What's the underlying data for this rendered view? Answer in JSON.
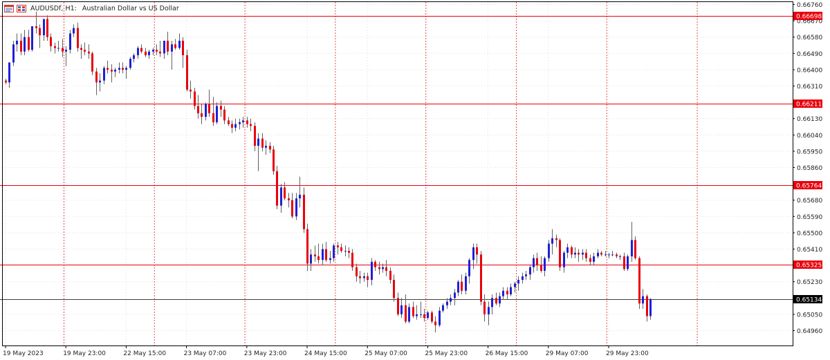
{
  "header": {
    "symbol_label": "AUDUSDf, H1:",
    "description": "Australian Dollar vs US Dollar",
    "icons": [
      "chart-window-icon",
      "symbol-list-icon"
    ]
  },
  "colors": {
    "bull": "#1f1fd8",
    "bear": "#e8000b",
    "wick": "#606060",
    "grid": "#dddddd",
    "vgrid": "#e05050",
    "hline": "#e8000b",
    "current": "#000000"
  },
  "chart_data": {
    "type": "candlestick",
    "timeframe": "H1",
    "ylim": [
      0.64945,
      0.66775
    ],
    "y_ticks": [
      "0.66760",
      "0.66670",
      "0.66580",
      "0.66490",
      "0.66400",
      "0.66310",
      "0.66130",
      "0.66040",
      "0.65950",
      "0.65860",
      "0.65680",
      "0.65590",
      "0.65500",
      "0.65410",
      "0.65230",
      "0.65050",
      "0.64960"
    ],
    "x_ticks": [
      "19 May 2023",
      "19 May 23:00",
      "22 May 15:00",
      "23 May 07:00",
      "23 May 23:00",
      "24 May 15:00",
      "25 May 07:00",
      "25 May 23:00",
      "26 May 15:00",
      "29 May 07:00",
      "29 May 23:00"
    ],
    "x_tick_index": [
      0,
      16,
      32,
      48,
      64,
      80,
      96,
      112,
      128,
      144,
      160
    ],
    "separator_index": [
      16,
      40,
      64,
      88,
      112,
      136,
      160,
      184
    ],
    "horizontal_levels": [
      {
        "value": 0.66698,
        "label": "0.66698"
      },
      {
        "value": 0.66211,
        "label": "0.66211"
      },
      {
        "value": 0.65764,
        "label": "0.65764"
      },
      {
        "value": 0.65325,
        "label": "0.65325"
      }
    ],
    "current_price": {
      "value": 0.65134,
      "label": "0.65134"
    },
    "candles": [
      [
        0.6634,
        0.6635,
        0.6632,
        0.6633
      ],
      [
        0.6633,
        0.6644,
        0.663,
        0.6644
      ],
      [
        0.6644,
        0.6656,
        0.6642,
        0.6654
      ],
      [
        0.6654,
        0.666,
        0.665,
        0.6656
      ],
      [
        0.6656,
        0.666,
        0.6648,
        0.665
      ],
      [
        0.665,
        0.6662,
        0.6648,
        0.6658
      ],
      [
        0.6658,
        0.6662,
        0.665,
        0.6651
      ],
      [
        0.6651,
        0.6664,
        0.665,
        0.6664
      ],
      [
        0.6664,
        0.6672,
        0.666,
        0.6663
      ],
      [
        0.6663,
        0.6665,
        0.6652,
        0.6659
      ],
      [
        0.6659,
        0.6668,
        0.6656,
        0.6668
      ],
      [
        0.6668,
        0.667,
        0.6656,
        0.6658
      ],
      [
        0.6658,
        0.666,
        0.665,
        0.6653
      ],
      [
        0.6653,
        0.6655,
        0.6649,
        0.6652
      ],
      [
        0.6652,
        0.6656,
        0.665,
        0.6652
      ],
      [
        0.6652,
        0.6657,
        0.6647,
        0.665
      ],
      [
        0.665,
        0.6653,
        0.6642,
        0.6651
      ],
      [
        0.6651,
        0.6662,
        0.6649,
        0.666
      ],
      [
        0.666,
        0.6665,
        0.6658,
        0.6663
      ],
      [
        0.6663,
        0.6666,
        0.665,
        0.6652
      ],
      [
        0.6652,
        0.6654,
        0.6646,
        0.6651
      ],
      [
        0.6651,
        0.6655,
        0.6648,
        0.665
      ],
      [
        0.665,
        0.6654,
        0.6646,
        0.6649
      ],
      [
        0.6649,
        0.665,
        0.6637,
        0.6639
      ],
      [
        0.6639,
        0.6641,
        0.6626,
        0.6633
      ],
      [
        0.6633,
        0.6638,
        0.6628,
        0.6634
      ],
      [
        0.6634,
        0.6642,
        0.6632,
        0.6641
      ],
      [
        0.6641,
        0.6645,
        0.6638,
        0.664
      ],
      [
        0.664,
        0.6643,
        0.6633,
        0.6639
      ],
      [
        0.6639,
        0.6641,
        0.6636,
        0.664
      ],
      [
        0.664,
        0.6644,
        0.6638,
        0.6641
      ],
      [
        0.6641,
        0.6644,
        0.6638,
        0.664
      ],
      [
        0.664,
        0.6642,
        0.6635,
        0.6641
      ],
      [
        0.6641,
        0.6647,
        0.664,
        0.6646
      ],
      [
        0.6646,
        0.6649,
        0.6644,
        0.6648
      ],
      [
        0.6648,
        0.6653,
        0.6646,
        0.6652
      ],
      [
        0.6652,
        0.6654,
        0.6649,
        0.665
      ],
      [
        0.665,
        0.6652,
        0.6647,
        0.6648
      ],
      [
        0.6648,
        0.6651,
        0.6646,
        0.665
      ],
      [
        0.665,
        0.6652,
        0.6648,
        0.6651
      ],
      [
        0.6651,
        0.6654,
        0.6648,
        0.665
      ],
      [
        0.665,
        0.6656,
        0.6647,
        0.6649
      ],
      [
        0.6649,
        0.6656,
        0.6646,
        0.6656
      ],
      [
        0.6656,
        0.6661,
        0.6648,
        0.665
      ],
      [
        0.665,
        0.6656,
        0.664,
        0.6654
      ],
      [
        0.6654,
        0.6657,
        0.6651,
        0.6652
      ],
      [
        0.6652,
        0.666,
        0.6651,
        0.6656
      ],
      [
        0.6656,
        0.6658,
        0.6641,
        0.6648
      ],
      [
        0.6648,
        0.6651,
        0.6628,
        0.6629
      ],
      [
        0.6629,
        0.6634,
        0.6624,
        0.6628
      ],
      [
        0.6628,
        0.663,
        0.6618,
        0.662
      ],
      [
        0.662,
        0.6626,
        0.6613,
        0.6616
      ],
      [
        0.6616,
        0.6621,
        0.661,
        0.6614
      ],
      [
        0.6614,
        0.6622,
        0.6612,
        0.6621
      ],
      [
        0.6621,
        0.6629,
        0.6614,
        0.6616
      ],
      [
        0.6616,
        0.6625,
        0.6609,
        0.6611
      ],
      [
        0.6611,
        0.6622,
        0.661,
        0.662
      ],
      [
        0.662,
        0.6623,
        0.6614,
        0.6618
      ],
      [
        0.6618,
        0.662,
        0.661,
        0.6612
      ],
      [
        0.6612,
        0.6614,
        0.6609,
        0.661
      ],
      [
        0.661,
        0.6612,
        0.6605,
        0.6608
      ],
      [
        0.6608,
        0.6613,
        0.6606,
        0.661
      ],
      [
        0.661,
        0.6613,
        0.6607,
        0.6611
      ],
      [
        0.6611,
        0.6614,
        0.6608,
        0.6612
      ],
      [
        0.6612,
        0.6614,
        0.6608,
        0.661
      ],
      [
        0.661,
        0.6613,
        0.6606,
        0.6609
      ],
      [
        0.6609,
        0.6611,
        0.6595,
        0.6598
      ],
      [
        0.6598,
        0.6605,
        0.6584,
        0.6602
      ],
      [
        0.6602,
        0.6605,
        0.6595,
        0.6597
      ],
      [
        0.6597,
        0.6601,
        0.6593,
        0.6598
      ],
      [
        0.6598,
        0.66,
        0.6594,
        0.6596
      ],
      [
        0.6596,
        0.6598,
        0.6582,
        0.6584
      ],
      [
        0.6584,
        0.6587,
        0.6563,
        0.6565
      ],
      [
        0.6565,
        0.6577,
        0.6561,
        0.6575
      ],
      [
        0.6575,
        0.6578,
        0.6568,
        0.6569
      ],
      [
        0.6569,
        0.6572,
        0.6564,
        0.6568
      ],
      [
        0.6568,
        0.6572,
        0.6558,
        0.6559
      ],
      [
        0.6559,
        0.6572,
        0.6557,
        0.6569
      ],
      [
        0.6569,
        0.6581,
        0.6564,
        0.6571
      ],
      [
        0.6571,
        0.6575,
        0.655,
        0.6552
      ],
      [
        0.6552,
        0.6555,
        0.6529,
        0.6533
      ],
      [
        0.6533,
        0.6541,
        0.6529,
        0.6538
      ],
      [
        0.6538,
        0.6543,
        0.6534,
        0.6537
      ],
      [
        0.6537,
        0.6544,
        0.6533,
        0.6535
      ],
      [
        0.6535,
        0.6544,
        0.6532,
        0.6541
      ],
      [
        0.6541,
        0.6545,
        0.6534,
        0.6535
      ],
      [
        0.6535,
        0.654,
        0.6533,
        0.6536
      ],
      [
        0.6536,
        0.6544,
        0.6534,
        0.6543
      ],
      [
        0.6543,
        0.6545,
        0.6538,
        0.6542
      ],
      [
        0.6542,
        0.6544,
        0.6539,
        0.654
      ],
      [
        0.654,
        0.6543,
        0.6537,
        0.654
      ],
      [
        0.654,
        0.6542,
        0.6536,
        0.6539
      ],
      [
        0.6539,
        0.6541,
        0.6529,
        0.6531
      ],
      [
        0.6531,
        0.6533,
        0.6523,
        0.6526
      ],
      [
        0.6526,
        0.6529,
        0.6522,
        0.6525
      ],
      [
        0.6525,
        0.6528,
        0.6523,
        0.6526
      ],
      [
        0.6526,
        0.6528,
        0.652,
        0.6524
      ],
      [
        0.6524,
        0.6536,
        0.6521,
        0.6534
      ],
      [
        0.6534,
        0.6535,
        0.6529,
        0.6531
      ],
      [
        0.6531,
        0.6534,
        0.6527,
        0.653
      ],
      [
        0.653,
        0.6533,
        0.6528,
        0.6531
      ],
      [
        0.6531,
        0.6535,
        0.6526,
        0.6529
      ],
      [
        0.6529,
        0.6531,
        0.6522,
        0.6524
      ],
      [
        0.6524,
        0.6527,
        0.6512,
        0.6514
      ],
      [
        0.6514,
        0.6517,
        0.6504,
        0.6505
      ],
      [
        0.6505,
        0.6514,
        0.6503,
        0.651
      ],
      [
        0.651,
        0.6516,
        0.65,
        0.6501
      ],
      [
        0.6501,
        0.6511,
        0.65,
        0.6509
      ],
      [
        0.6509,
        0.6512,
        0.6503,
        0.6504
      ],
      [
        0.6504,
        0.651,
        0.6502,
        0.6505
      ],
      [
        0.6505,
        0.6512,
        0.6503,
        0.6505
      ],
      [
        0.6505,
        0.6508,
        0.6501,
        0.6503
      ],
      [
        0.6503,
        0.6507,
        0.6502,
        0.6506
      ],
      [
        0.6506,
        0.6507,
        0.65,
        0.6501
      ],
      [
        0.6501,
        0.6504,
        0.6495,
        0.6499
      ],
      [
        0.6499,
        0.6509,
        0.6498,
        0.6507
      ],
      [
        0.6507,
        0.6511,
        0.6506,
        0.651
      ],
      [
        0.651,
        0.6514,
        0.6508,
        0.6512
      ],
      [
        0.6512,
        0.6516,
        0.651,
        0.6514
      ],
      [
        0.6514,
        0.6519,
        0.651,
        0.6517
      ],
      [
        0.6517,
        0.6524,
        0.6515,
        0.6523
      ],
      [
        0.6523,
        0.6527,
        0.6516,
        0.6518
      ],
      [
        0.6518,
        0.6528,
        0.6516,
        0.6526
      ],
      [
        0.6526,
        0.6536,
        0.6522,
        0.6535
      ],
      [
        0.6535,
        0.6544,
        0.653,
        0.6542
      ],
      [
        0.6542,
        0.6544,
        0.6533,
        0.6538
      ],
      [
        0.6538,
        0.654,
        0.651,
        0.6512
      ],
      [
        0.6512,
        0.6516,
        0.6501,
        0.6505
      ],
      [
        0.6505,
        0.6512,
        0.6499,
        0.6509
      ],
      [
        0.6509,
        0.6516,
        0.6505,
        0.6514
      ],
      [
        0.6514,
        0.6517,
        0.651,
        0.6511
      ],
      [
        0.6511,
        0.6517,
        0.6509,
        0.6515
      ],
      [
        0.6515,
        0.652,
        0.6513,
        0.6518
      ],
      [
        0.6518,
        0.652,
        0.6513,
        0.6516
      ],
      [
        0.6516,
        0.6522,
        0.6515,
        0.652
      ],
      [
        0.652,
        0.6523,
        0.6517,
        0.6522
      ],
      [
        0.6522,
        0.6526,
        0.6518,
        0.6524
      ],
      [
        0.6524,
        0.6528,
        0.6522,
        0.6526
      ],
      [
        0.6526,
        0.6529,
        0.6524,
        0.6527
      ],
      [
        0.6527,
        0.6532,
        0.6524,
        0.6531
      ],
      [
        0.6531,
        0.6538,
        0.6528,
        0.6536
      ],
      [
        0.6536,
        0.6539,
        0.6529,
        0.6532
      ],
      [
        0.6532,
        0.6537,
        0.6528,
        0.6529
      ],
      [
        0.6529,
        0.6537,
        0.6526,
        0.6536
      ],
      [
        0.6536,
        0.6546,
        0.6534,
        0.6544
      ],
      [
        0.6544,
        0.6552,
        0.6538,
        0.6547
      ],
      [
        0.6547,
        0.6549,
        0.6542,
        0.6546
      ],
      [
        0.6546,
        0.6547,
        0.6529,
        0.6531
      ],
      [
        0.6531,
        0.654,
        0.6528,
        0.6539
      ],
      [
        0.6539,
        0.6544,
        0.6536,
        0.6542
      ],
      [
        0.6542,
        0.6543,
        0.6536,
        0.6538
      ],
      [
        0.6538,
        0.6542,
        0.6536,
        0.6539
      ],
      [
        0.6539,
        0.6541,
        0.6534,
        0.6538
      ],
      [
        0.6538,
        0.6541,
        0.6535,
        0.6539
      ],
      [
        0.6539,
        0.6541,
        0.6534,
        0.6536
      ],
      [
        0.6536,
        0.6538,
        0.6532,
        0.6534
      ],
      [
        0.6534,
        0.6539,
        0.6532,
        0.6537
      ],
      [
        0.6537,
        0.6541,
        0.6536,
        0.6539
      ],
      [
        0.6539,
        0.654,
        0.6537,
        0.6538
      ],
      [
        0.6538,
        0.654,
        0.6537,
        0.6538
      ],
      [
        0.6538,
        0.6539,
        0.6536,
        0.6538
      ],
      [
        0.6538,
        0.654,
        0.6537,
        0.6538
      ],
      [
        0.6538,
        0.6539,
        0.6536,
        0.6537
      ],
      [
        0.6537,
        0.6538,
        0.6535,
        0.6537
      ],
      [
        0.6537,
        0.6539,
        0.6529,
        0.653
      ],
      [
        0.653,
        0.6538,
        0.6529,
        0.6537
      ],
      [
        0.6537,
        0.6556,
        0.6534,
        0.6546
      ],
      [
        0.6546,
        0.6548,
        0.6535,
        0.6536
      ],
      [
        0.6536,
        0.6537,
        0.6508,
        0.6511
      ],
      [
        0.6511,
        0.6519,
        0.6508,
        0.6515
      ],
      [
        0.6515,
        0.6516,
        0.6501,
        0.6504
      ],
      [
        0.6504,
        0.6514,
        0.6502,
        0.65134
      ]
    ]
  }
}
